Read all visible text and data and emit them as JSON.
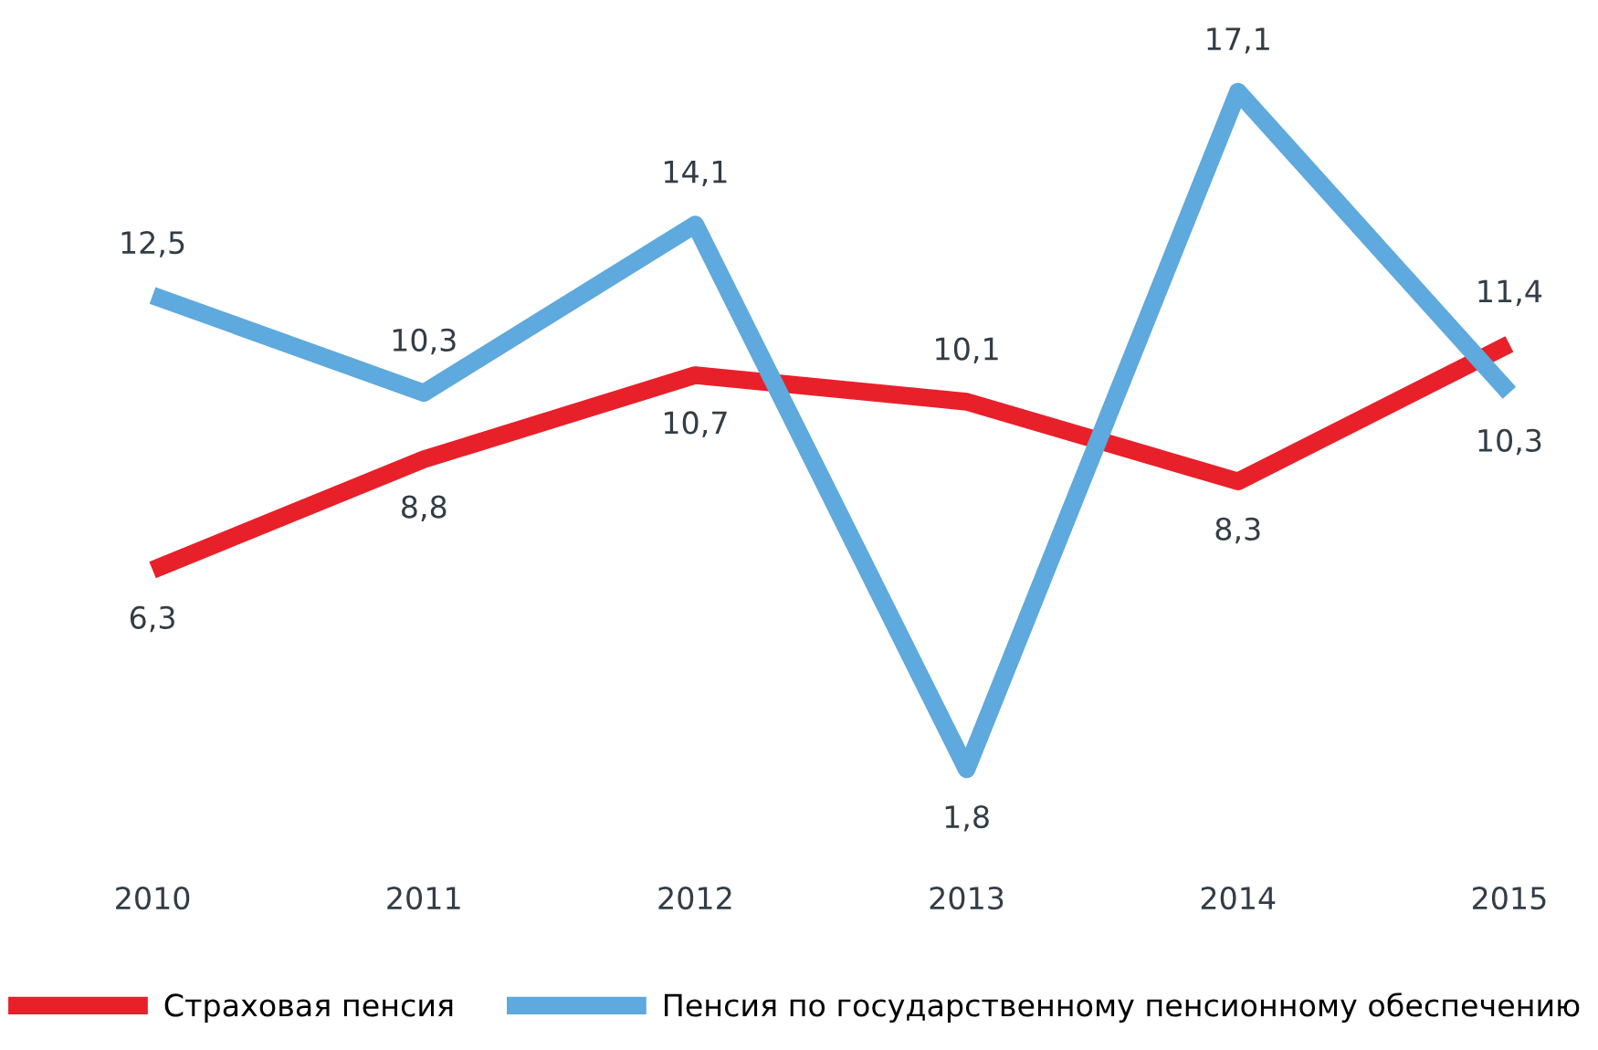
{
  "chart_data": {
    "type": "line",
    "categories": [
      "2010",
      "2011",
      "2012",
      "2013",
      "2014",
      "2015"
    ],
    "series": [
      {
        "name": "Страховая пенсия",
        "color": "#e8202a",
        "values": [
          6.3,
          8.8,
          10.7,
          10.1,
          8.3,
          11.4
        ],
        "value_labels": [
          "6,3",
          "8,8",
          "10,7",
          "10,1",
          "8,3",
          "11,4"
        ]
      },
      {
        "name": "Пенсия по государственному пенсионному обеспечению",
        "color": "#5ea9dd",
        "values": [
          12.5,
          10.3,
          14.1,
          1.8,
          17.1,
          10.3
        ],
        "value_labels": [
          "12,5",
          "10,3",
          "14,1",
          "1,8",
          "17,1",
          "10,3"
        ]
      }
    ],
    "legend": "bottom",
    "grid": false,
    "marker": "none",
    "line_style": "solid"
  }
}
